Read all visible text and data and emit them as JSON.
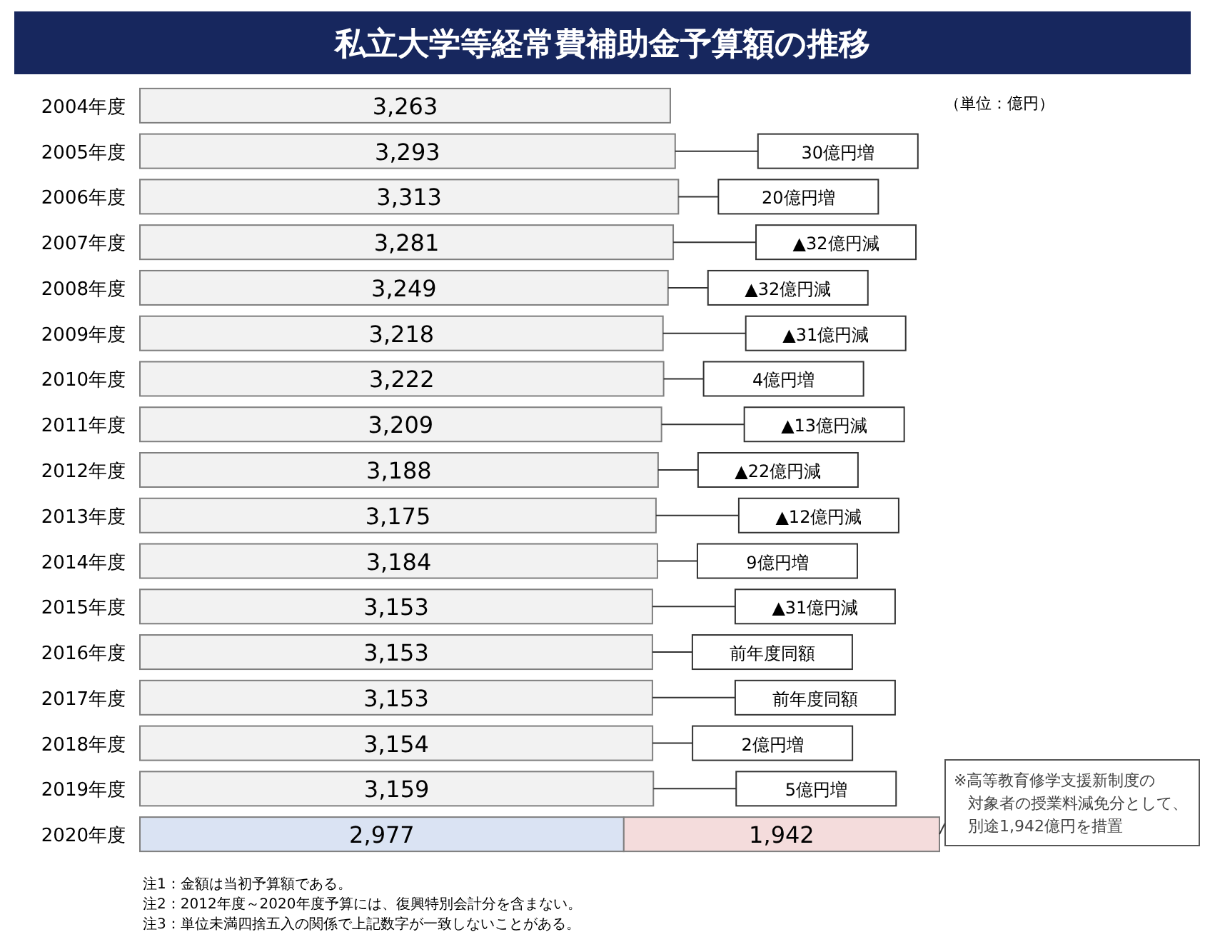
{
  "chart_data": {
    "type": "bar",
    "orientation": "horizontal",
    "stacked": true,
    "title": "私立大学等経常費補助金予算額の推移",
    "categories": [
      "2004年度",
      "2005年度",
      "2006年度",
      "2007年度",
      "2008年度",
      "2009年度",
      "2010年度",
      "2011年度",
      "2012年度",
      "2013年度",
      "2014年度",
      "2015年度",
      "2016年度",
      "2017年度",
      "2018年度",
      "2019年度",
      "2020年度"
    ],
    "series": [
      {
        "values": [
          3263,
          3293,
          3313,
          3281,
          3249,
          3218,
          3222,
          3209,
          3188,
          3175,
          3184,
          3153,
          3153,
          3153,
          3154,
          3159,
          2977
        ],
        "value_labels": [
          "3,263",
          "3,293",
          "3,313",
          "3,281",
          "3,249",
          "3,218",
          "3,222",
          "3,209",
          "3,188",
          "3,175",
          "3,184",
          "3,153",
          "3,153",
          "3,153",
          "3,154",
          "3,159",
          "2,977"
        ],
        "colors": [
          "#f2f2f2",
          "#f2f2f2",
          "#f2f2f2",
          "#f2f2f2",
          "#f2f2f2",
          "#f2f2f2",
          "#f2f2f2",
          "#f2f2f2",
          "#f2f2f2",
          "#f2f2f2",
          "#f2f2f2",
          "#f2f2f2",
          "#f2f2f2",
          "#f2f2f2",
          "#f2f2f2",
          "#f2f2f2",
          "#dae3f3"
        ]
      },
      {
        "values": [
          null,
          null,
          null,
          null,
          null,
          null,
          null,
          null,
          null,
          null,
          null,
          null,
          null,
          null,
          null,
          null,
          1942
        ],
        "value_labels": [
          null,
          null,
          null,
          null,
          null,
          null,
          null,
          null,
          null,
          null,
          null,
          null,
          null,
          null,
          null,
          null,
          "1,942"
        ],
        "color": "#f4dcdc"
      }
    ],
    "tick_labels": "y",
    "annotations": [
      "（単位：億円）",
      "30億円増",
      "20億円増",
      "▲32億円減",
      "▲32億円減",
      "▲31億円減",
      "4億円増",
      "▲13億円減",
      "▲22億円減",
      "▲12億円減",
      "9億円増",
      "▲31億円減",
      "前年度同額",
      "前年度同額",
      "2億円増",
      "5億円増",
      "※高等教育修学支援新制度の対象者の授業料減免分として、別途1,942億円を措置",
      "注1：金額は当初予算額である。",
      "注2：2012年度～2020年度予算には、復興特別会計分を含まない。",
      "注3：単位未満四捨五入の関係で上記数字が一致しないことがある。"
    ]
  }
}
